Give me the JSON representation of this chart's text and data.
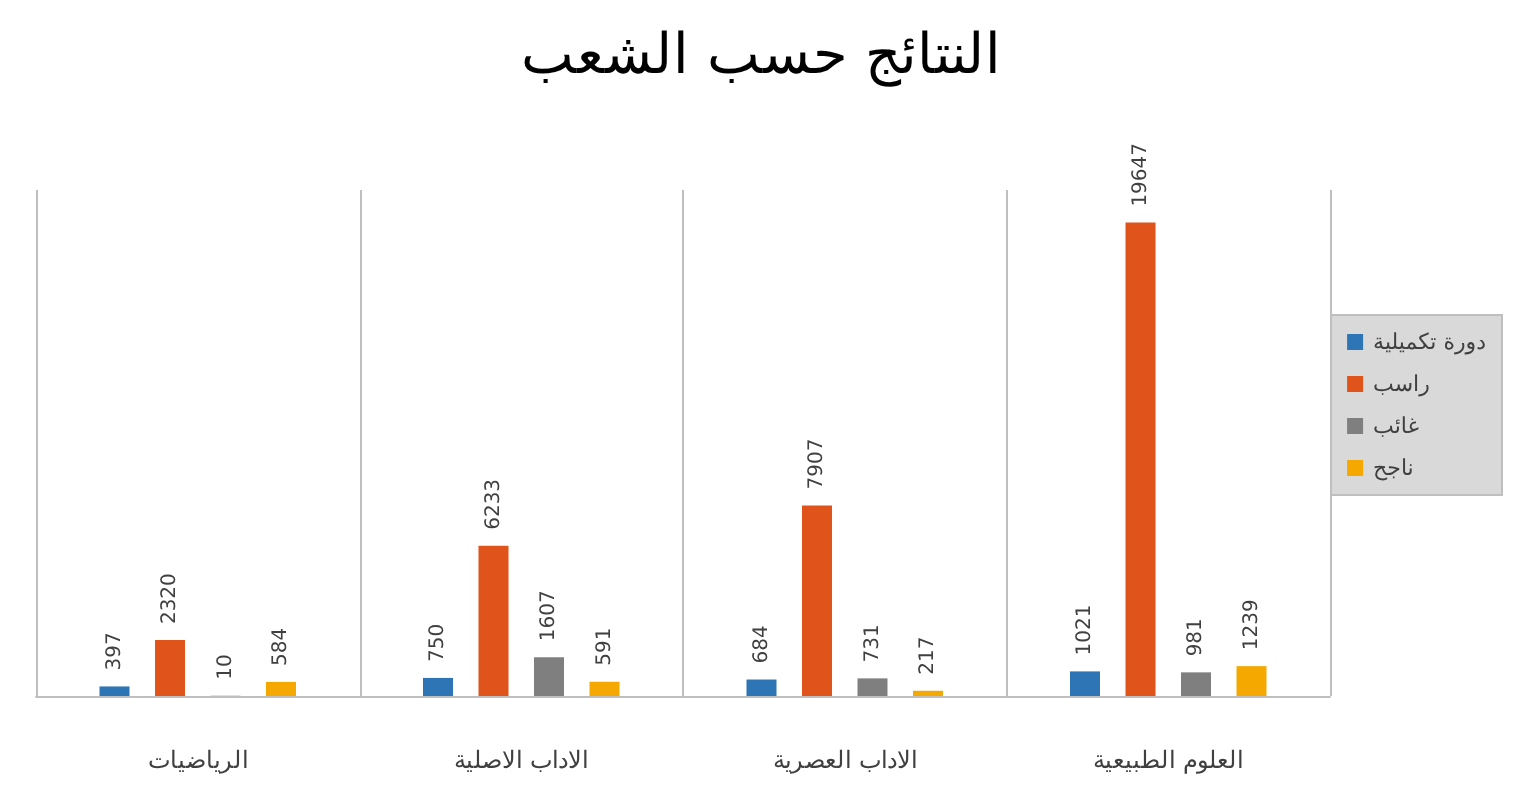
{
  "chart_data": {
    "type": "bar",
    "title": "النتائج حسب الشعب",
    "categories": [
      "الرياضيات",
      "الاداب الاصلية",
      "الاداب العصرية",
      "العلوم الطبيعية"
    ],
    "series": [
      {
        "name": "دورة تكميلية",
        "color": "#2e75b6",
        "values": [
          397,
          750,
          684,
          1021
        ]
      },
      {
        "name": "راسب",
        "color": "#e0531a",
        "values": [
          2320,
          6233,
          7907,
          19647
        ]
      },
      {
        "name": "غائب",
        "color": "#7f7f7f",
        "values": [
          10,
          1607,
          731,
          981
        ]
      },
      {
        "name": "ناجح",
        "color": "#f5a800",
        "values": [
          584,
          591,
          217,
          1239
        ]
      }
    ],
    "data_labels": true,
    "grid": "x",
    "legend": "right"
  }
}
